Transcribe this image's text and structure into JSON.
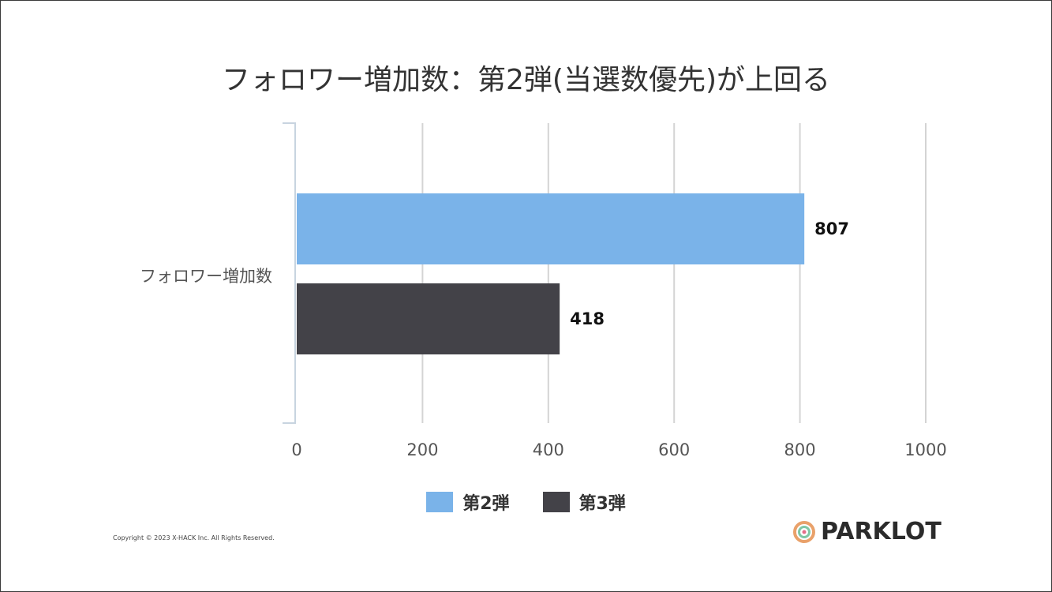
{
  "chart_data": {
    "type": "bar",
    "orientation": "horizontal",
    "title": "フォロワー増加数：第2弾(当選数優先)が上回る",
    "categories": [
      "フォロワー増加数"
    ],
    "series": [
      {
        "name": "第2弾",
        "values": [
          807
        ],
        "color": "#7ab3e9"
      },
      {
        "name": "第3弾",
        "values": [
          418
        ],
        "color": "#434248"
      }
    ],
    "xlim": [
      0,
      1000
    ],
    "xticks": [
      0,
      200,
      400,
      600,
      800,
      1000
    ],
    "xtick_labels": [
      "0",
      "200",
      "400",
      "600",
      "800",
      "1000"
    ],
    "data_labels": [
      "807",
      "418"
    ],
    "grid": true,
    "legend": "bottom-center"
  },
  "footer": {
    "copyright": "Copyright © 2023 X-HACK Inc. All Rights Reserved.",
    "logo_text": "PARKLOT"
  },
  "colors": {
    "grid": "#d4d4d4",
    "axis": "#c8d4e0",
    "text": "#333333"
  }
}
